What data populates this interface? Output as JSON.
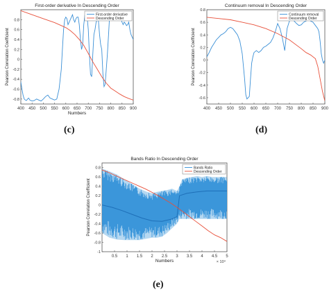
{
  "chart_data": [
    {
      "type": "line",
      "title": "First-order derivative In Descending Order",
      "xlabel": "Numbers",
      "ylabel": "Pearson Correlation Coefficient",
      "xlim": [
        400,
        900
      ],
      "ylim": [
        -0.9,
        1.0
      ],
      "xticks": [
        "400",
        "450",
        "500",
        "550",
        "600",
        "650",
        "700",
        "750",
        "800",
        "850",
        "900"
      ],
      "yticks": [
        "0.8",
        "0.6",
        "0.4",
        "0.2",
        "0",
        "-0.2",
        "-0.4",
        "-0.6",
        "-0.8"
      ],
      "legend_placement": "top-right",
      "grid": false,
      "series": [
        {
          "name": "First-order derivative",
          "color": "#3a8fd6",
          "x": [
            400,
            405,
            410,
            415,
            420,
            425,
            430,
            435,
            440,
            450,
            460,
            470,
            480,
            490,
            500,
            510,
            520,
            530,
            540,
            550,
            560,
            570,
            580,
            585,
            590,
            595,
            600,
            605,
            610,
            615,
            620,
            625,
            630,
            635,
            640,
            645,
            650,
            655,
            660,
            665,
            670,
            675,
            680,
            685,
            690,
            695,
            700,
            705,
            710,
            715,
            720,
            725,
            730,
            735,
            740,
            745,
            750,
            755,
            760,
            765,
            770,
            775,
            780,
            785,
            790,
            795,
            800,
            805,
            810,
            815,
            820,
            825,
            830,
            835,
            840,
            845,
            850,
            855,
            860,
            865,
            870,
            875,
            880,
            885,
            890,
            895,
            900
          ],
          "y": [
            -0.45,
            -0.6,
            -0.72,
            -0.8,
            -0.82,
            -0.83,
            -0.8,
            -0.78,
            -0.82,
            -0.84,
            -0.83,
            -0.8,
            -0.82,
            -0.84,
            -0.8,
            -0.75,
            -0.72,
            -0.78,
            -0.8,
            -0.82,
            -0.8,
            -0.6,
            -0.2,
            0.2,
            0.6,
            0.8,
            0.85,
            0.82,
            0.7,
            0.75,
            0.8,
            0.85,
            0.9,
            0.8,
            0.75,
            0.82,
            0.85,
            0.85,
            0.7,
            0.4,
            0.2,
            0.3,
            0.7,
            0.9,
            0.92,
            0.85,
            0.6,
            0.1,
            -0.3,
            -0.35,
            0.1,
            0.5,
            0.6,
            0.75,
            0.8,
            0.78,
            0.5,
            0.3,
            0.2,
            -0.3,
            -0.55,
            -0.5,
            -0.2,
            0.1,
            0.5,
            0.9,
            0.92,
            0.88,
            0.8,
            0.85,
            0.9,
            0.88,
            0.85,
            0.8,
            0.85,
            0.82,
            0.75,
            0.7,
            0.75,
            0.72,
            0.68,
            0.7,
            0.75,
            0.6,
            0.5,
            0.45,
            0.4
          ]
        },
        {
          "name": "Descending Order",
          "color": "#e8503a",
          "x": [
            400,
            450,
            500,
            550,
            600,
            620,
            640,
            660,
            680,
            700,
            720,
            740,
            760,
            780,
            800,
            820,
            840,
            860,
            880,
            900
          ],
          "y": [
            0.98,
            0.9,
            0.82,
            0.74,
            0.64,
            0.58,
            0.5,
            0.4,
            0.28,
            0.12,
            -0.05,
            -0.2,
            -0.35,
            -0.48,
            -0.58,
            -0.64,
            -0.7,
            -0.75,
            -0.79,
            -0.82
          ]
        }
      ]
    },
    {
      "type": "line",
      "title": "Continuum removal In Descending Order",
      "xlabel": "",
      "ylabel": "Pearson Correlation Coefficient",
      "xlim": [
        400,
        900
      ],
      "ylim": [
        -0.7,
        0.8
      ],
      "xticks": [
        "400",
        "450",
        "500",
        "550",
        "600",
        "650",
        "700",
        "750",
        "800",
        "850",
        "900"
      ],
      "yticks": [
        "0.8",
        "0.6",
        "0.4",
        "0.2",
        "0",
        "-0.2",
        "-0.4",
        "-0.6"
      ],
      "legend_placement": "top-right",
      "grid": false,
      "series": [
        {
          "name": "Continuum removal",
          "color": "#3a8fd6",
          "x": [
            400,
            410,
            420,
            430,
            440,
            450,
            460,
            470,
            480,
            490,
            500,
            510,
            520,
            530,
            540,
            550,
            560,
            565,
            570,
            575,
            580,
            585,
            590,
            595,
            600,
            610,
            620,
            630,
            640,
            650,
            660,
            670,
            680,
            690,
            700,
            710,
            720,
            730,
            740,
            750,
            760,
            770,
            780,
            790,
            800,
            810,
            820,
            830,
            840,
            850,
            860,
            870,
            875,
            880,
            885,
            890,
            895,
            900
          ],
          "y": [
            0.05,
            0.12,
            0.2,
            0.26,
            0.32,
            0.36,
            0.4,
            0.42,
            0.45,
            0.5,
            0.52,
            0.5,
            0.45,
            0.4,
            0.3,
            0.1,
            -0.3,
            -0.55,
            -0.62,
            -0.6,
            -0.58,
            -0.3,
            -0.05,
            0.05,
            0.12,
            0.15,
            0.12,
            0.15,
            0.2,
            0.22,
            0.25,
            0.28,
            0.35,
            0.45,
            0.58,
            0.5,
            0.35,
            0.15,
            0.5,
            0.62,
            0.65,
            0.62,
            0.58,
            0.55,
            0.56,
            0.6,
            0.62,
            0.64,
            0.62,
            0.6,
            0.55,
            0.5,
            0.45,
            0.3,
            0.1,
            0.0,
            -0.05,
            0.0
          ]
        },
        {
          "name": "Descending Order",
          "color": "#e8503a",
          "x": [
            400,
            450,
            500,
            550,
            600,
            650,
            700,
            750,
            800,
            820,
            840,
            860,
            870,
            880,
            890,
            900
          ],
          "y": [
            0.68,
            0.66,
            0.64,
            0.6,
            0.56,
            0.5,
            0.42,
            0.32,
            0.18,
            0.12,
            0.08,
            0.02,
            -0.1,
            -0.3,
            -0.5,
            -0.65
          ]
        }
      ]
    },
    {
      "type": "line",
      "title": "Bands Ratio In Descending Order",
      "xlabel": "Numbers",
      "ylabel": "Pearson Correlation Coefficient",
      "xlim": [
        0,
        50000
      ],
      "x_multiplier": "× 10⁴",
      "ylim": [
        -1,
        0.9
      ],
      "xticks": [
        "0.5",
        "1",
        "1.5",
        "2",
        "2.5",
        "3",
        "3.5",
        "4",
        "4.5",
        "5"
      ],
      "yticks": [
        "0.8",
        "0.6",
        "0.4",
        "0.2",
        "0",
        "-0.2",
        "-0.4",
        "-0.6",
        "-0.8",
        "-1"
      ],
      "legend_placement": "top-right",
      "grid": false,
      "series": [
        {
          "name": "Bands Ratio",
          "color": "#2f8fd8",
          "band_upper_x": [
            0,
            3000,
            6000,
            9000,
            12000,
            15000,
            18000,
            20000,
            22000,
            24000,
            26000,
            28000,
            30000,
            31000,
            32000,
            34000,
            36000,
            38000,
            40000,
            42000,
            44000,
            46000,
            48000,
            50000
          ],
          "band_upper_y": [
            0.78,
            0.72,
            0.65,
            0.55,
            0.45,
            0.35,
            0.28,
            0.25,
            0.28,
            0.3,
            0.32,
            0.35,
            0.3,
            0.4,
            0.55,
            0.58,
            0.6,
            0.62,
            0.6,
            0.62,
            0.6,
            0.6,
            0.6,
            0.6
          ],
          "band_lower_x": [
            0,
            3000,
            6000,
            9000,
            12000,
            15000,
            18000,
            20000,
            22000,
            24000,
            26000,
            28000,
            30000,
            31000,
            32000,
            34000,
            36000,
            38000,
            40000,
            42000,
            44000,
            46000,
            48000,
            50000
          ],
          "band_lower_y": [
            -0.6,
            -0.7,
            -0.74,
            -0.75,
            -0.75,
            -0.75,
            -0.72,
            -0.7,
            -0.7,
            -0.68,
            -0.6,
            -0.5,
            -0.4,
            -0.3,
            -0.3,
            -0.3,
            -0.3,
            -0.3,
            -0.3,
            -0.3,
            -0.3,
            -0.3,
            -0.3,
            -0.3
          ],
          "trend_x": [
            0,
            4000,
            8000,
            12000,
            16000,
            20000,
            24000,
            28000,
            30000,
            31000,
            34000,
            38000,
            42000,
            46000,
            50000
          ],
          "trend_y": [
            0.0,
            -0.05,
            -0.12,
            -0.2,
            -0.28,
            -0.34,
            -0.35,
            -0.3,
            -0.25,
            0.2,
            0.25,
            0.28,
            0.3,
            0.3,
            0.3
          ]
        },
        {
          "name": "Descending Order",
          "color": "#e8503a",
          "x": [
            0,
            2500,
            5000,
            7500,
            10000,
            12500,
            15000,
            17500,
            20000,
            22500,
            25000,
            27500,
            30000,
            32500,
            35000,
            37500,
            40000,
            42500,
            45000,
            47500,
            50000
          ],
          "y": [
            0.75,
            0.7,
            0.64,
            0.58,
            0.52,
            0.46,
            0.4,
            0.34,
            0.27,
            0.2,
            0.12,
            0.04,
            -0.05,
            -0.15,
            -0.25,
            -0.35,
            -0.45,
            -0.55,
            -0.64,
            -0.7,
            -0.78
          ]
        }
      ]
    }
  ],
  "panel_labels": [
    "(c)",
    "(d)",
    "(e)"
  ]
}
